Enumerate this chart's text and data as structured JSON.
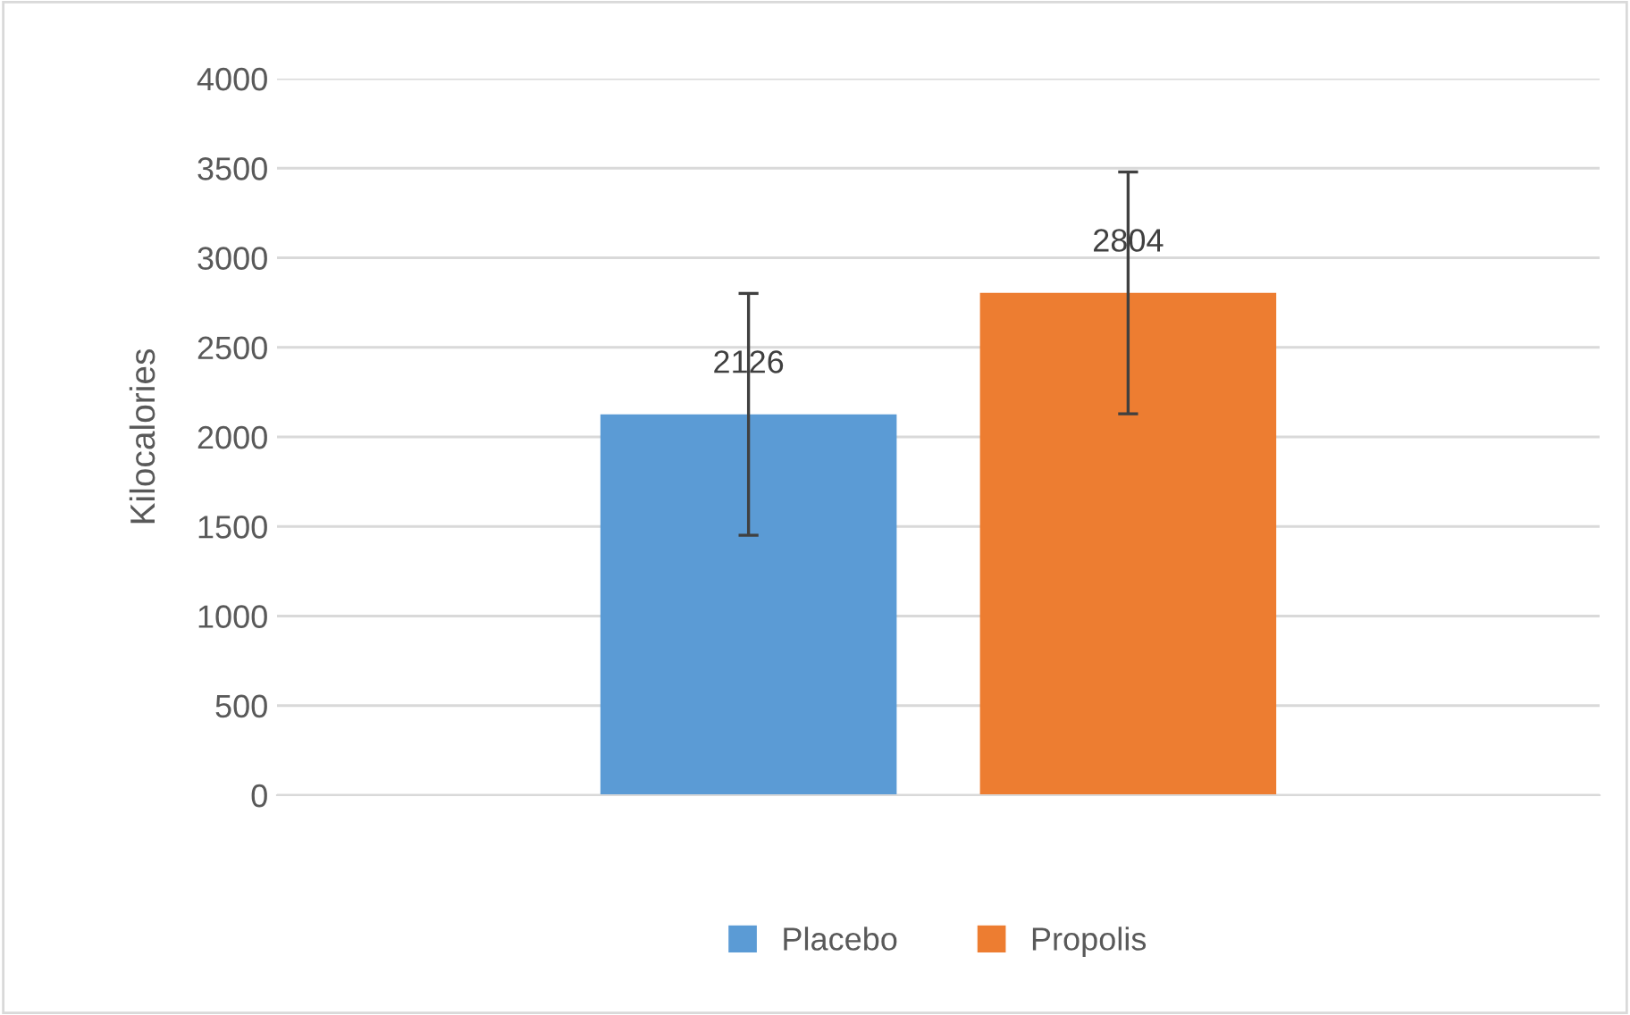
{
  "chart_data": {
    "type": "bar",
    "ylabel": "Kilocalories",
    "categories": [
      null
    ],
    "series": [
      {
        "name": "Placebo",
        "color": "#5b9bd5",
        "values": [
          2126
        ],
        "errors": [
          675
        ]
      },
      {
        "name": "Propolis",
        "color": "#ed7d31",
        "values": [
          2804
        ],
        "errors": [
          675
        ]
      }
    ],
    "ylim": [
      0,
      4000
    ],
    "yticks": [
      0,
      500,
      1000,
      1500,
      2000,
      2500,
      3000,
      3500,
      4000
    ],
    "grid": "y",
    "legend": "bottom",
    "data_labels": true
  }
}
